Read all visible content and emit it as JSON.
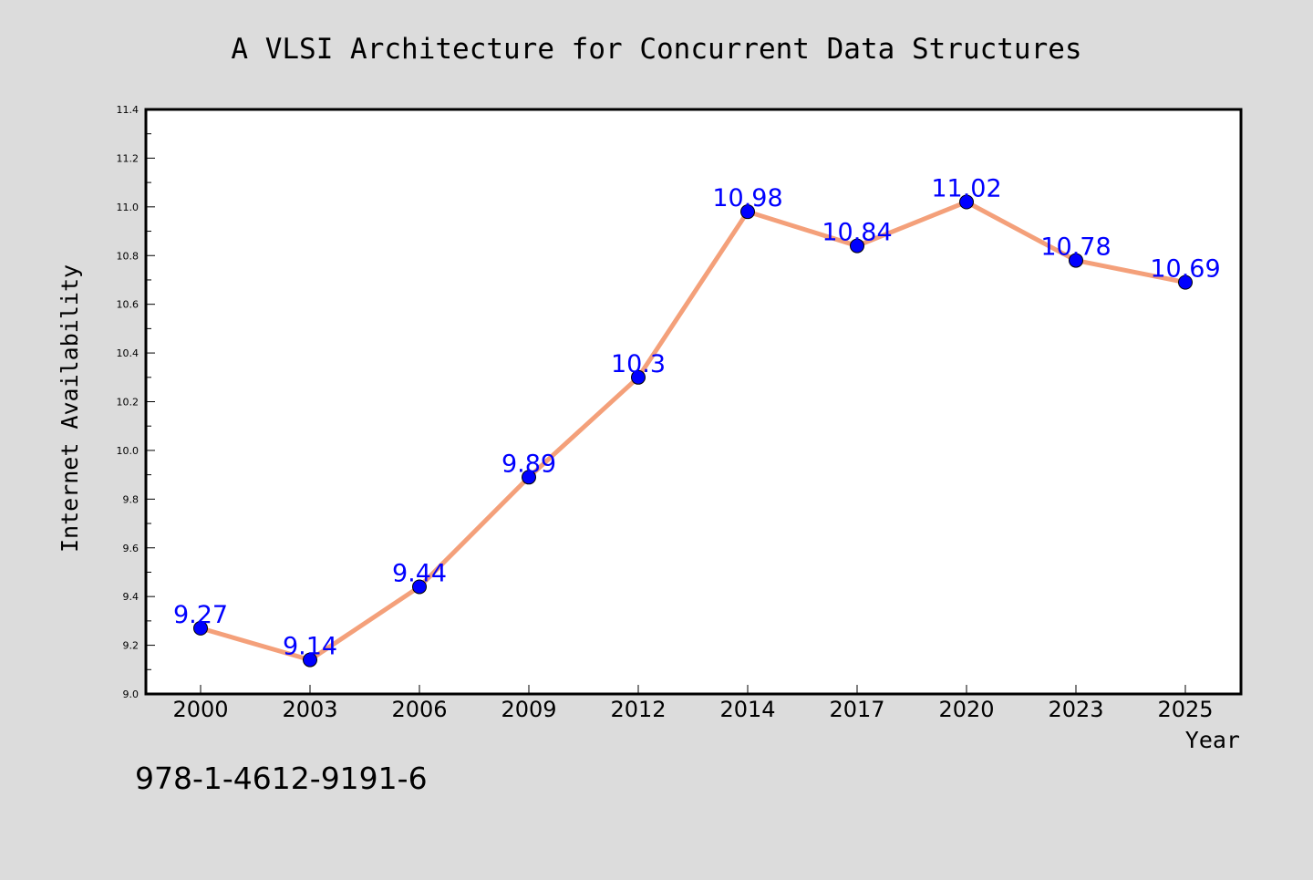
{
  "chart_data": {
    "type": "line",
    "title": "A VLSI Architecture for Concurrent Data Structures",
    "xlabel": "Year",
    "ylabel": "Internet Availability",
    "categories": [
      "2000",
      "2003",
      "2006",
      "2009",
      "2012",
      "2014",
      "2017",
      "2020",
      "2023",
      "2025"
    ],
    "series": [
      {
        "values": [
          9.27,
          9.14,
          9.44,
          9.89,
          10.3,
          10.98,
          10.84,
          11.02,
          10.78,
          10.69
        ],
        "labels": [
          "9.27",
          "9.14",
          "9.44",
          "9.89",
          "10.3",
          "10.98",
          "10.84",
          "11.02",
          "10.78",
          "10.69"
        ]
      }
    ],
    "ylim": [
      9.0,
      11.4
    ],
    "yticks": [
      "9.0",
      "9.2",
      "9.4",
      "9.6",
      "9.8",
      "10.0",
      "10.2",
      "10.4",
      "10.6",
      "10.8",
      "11.0",
      "11.2",
      "11.4"
    ],
    "grid": false,
    "colors": {
      "line": "#f4a07a",
      "marker": "#0000ff",
      "data_label": "#0000ff",
      "background": "#dcdcdc",
      "plot_background": "#ffffff"
    }
  },
  "footer": {
    "isbn": "978-1-4612-9191-6"
  }
}
